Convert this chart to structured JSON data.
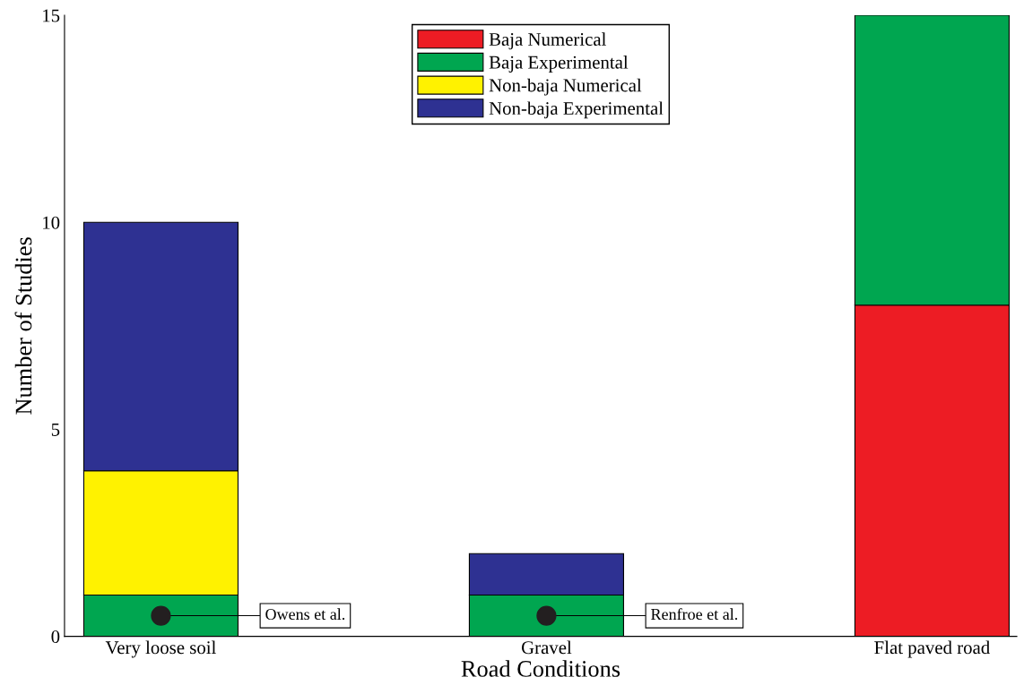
{
  "chart_data": {
    "type": "bar",
    "stacked": true,
    "xlabel": "Road Conditions",
    "ylabel": "Number of Studies",
    "categories": [
      "Very loose soil",
      "Gravel",
      "Flat paved road"
    ],
    "series": [
      {
        "name": "Baja Numerical",
        "color": "#ed1c24",
        "values": [
          0,
          0,
          8
        ]
      },
      {
        "name": "Baja Experimental",
        "color": "#00a650",
        "values": [
          1,
          1,
          7
        ]
      },
      {
        "name": "Non-baja Numerical",
        "color": "#fff200",
        "values": [
          3,
          0,
          0
        ]
      },
      {
        "name": "Non-baja Experimental",
        "color": "#2e3192",
        "values": [
          6,
          1,
          0
        ]
      }
    ],
    "ylim": [
      0,
      15
    ],
    "yticks": [
      0,
      5,
      10,
      15
    ],
    "grid": false,
    "legend": "top",
    "annotations": [
      {
        "text": "Owens et al.",
        "x": "Very loose soil",
        "y": 0.5
      },
      {
        "text": "Renfroe et al.",
        "x": "Gravel",
        "y": 0.5
      }
    ]
  }
}
